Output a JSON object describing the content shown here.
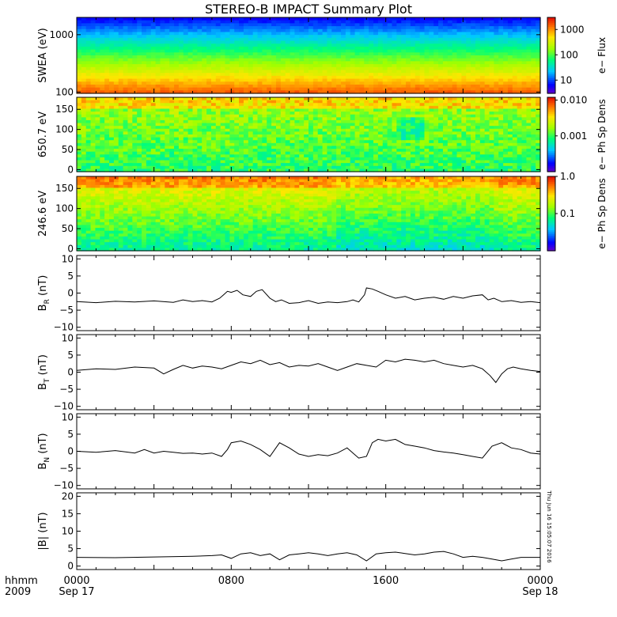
{
  "title": "STEREO-B IMPACT Summary Plot",
  "timestamp": "Thu Jun 16 15:05:07 2016",
  "time_axis": {
    "row_label_1": "hhmm",
    "row_label_2": "2009",
    "ticks": [
      {
        "hours": 0,
        "label": "0000",
        "sublabel": "Sep 17"
      },
      {
        "hours": 8,
        "label": "0800",
        "sublabel": ""
      },
      {
        "hours": 16,
        "label": "1600",
        "sublabel": ""
      },
      {
        "hours": 24,
        "label": "0000",
        "sublabel": "Sep 18"
      }
    ],
    "range_hours": [
      0,
      24
    ]
  },
  "chart_data": [
    {
      "type": "heatmap",
      "name": "swea",
      "ylabel": "SWEA (eV)",
      "yscale": "log",
      "ylim": [
        95,
        2000
      ],
      "yticks": [
        {
          "value": 100,
          "label": "100"
        },
        {
          "value": 1000,
          "label": "1000"
        }
      ],
      "colorbar": {
        "label": "e− Flux",
        "scale": "log",
        "range": [
          3,
          3000
        ],
        "ticks": [
          {
            "value": 10,
            "label": "10"
          },
          {
            "value": 100,
            "label": "100"
          },
          {
            "value": 1000,
            "label": "1000"
          }
        ]
      }
    },
    {
      "type": "heatmap",
      "name": "pad650",
      "ylabel": "650.7 eV",
      "yscale": "linear",
      "ylim": [
        -5,
        180
      ],
      "yticks": [
        {
          "value": 0,
          "label": "0"
        },
        {
          "value": 50,
          "label": "50"
        },
        {
          "value": 100,
          "label": "100"
        },
        {
          "value": 150,
          "label": "150"
        }
      ],
      "colorbar": {
        "label": "e− Ph Sp Dens",
        "scale": "log",
        "range": [
          0.0001,
          0.012
        ],
        "ticks": [
          {
            "value": 0.001,
            "label": "0.001"
          },
          {
            "value": 0.01,
            "label": "0.010"
          }
        ]
      }
    },
    {
      "type": "heatmap",
      "name": "pad246",
      "ylabel": "246.6 eV",
      "yscale": "linear",
      "ylim": [
        -5,
        180
      ],
      "yticks": [
        {
          "value": 0,
          "label": "0"
        },
        {
          "value": 50,
          "label": "50"
        },
        {
          "value": 100,
          "label": "100"
        },
        {
          "value": 150,
          "label": "150"
        }
      ],
      "colorbar": {
        "label": "e− Ph Sp Dens",
        "scale": "log",
        "range": [
          0.01,
          1.0
        ],
        "ticks": [
          {
            "value": 0.1,
            "label": "0.1"
          },
          {
            "value": 1.0,
            "label": "1.0"
          }
        ]
      }
    },
    {
      "type": "line",
      "name": "br",
      "ylabel": "B",
      "ylabel_sub": "R",
      "ylabel_unit": "(nT)",
      "ylim": [
        -11,
        11
      ],
      "yticks": [
        {
          "value": -10,
          "label": "−10"
        },
        {
          "value": -5,
          "label": "−5"
        },
        {
          "value": 0,
          "label": "0"
        },
        {
          "value": 5,
          "label": "5"
        },
        {
          "value": 10,
          "label": "10"
        }
      ],
      "x": [
        0,
        1,
        2,
        3,
        4,
        5,
        5.5,
        6,
        6.5,
        7,
        7.4,
        7.6,
        7.8,
        8,
        8.3,
        8.6,
        9,
        9.3,
        9.6,
        10,
        10.3,
        10.6,
        11,
        11.5,
        12,
        12.5,
        13,
        13.5,
        14,
        14.3,
        14.6,
        14.9,
        15,
        15.3,
        15.6,
        16,
        16.5,
        17,
        17.5,
        18,
        18.5,
        19,
        19.5,
        20,
        20.5,
        21,
        21.3,
        21.6,
        22,
        22.5,
        23,
        23.5,
        24
      ],
      "y": [
        -2.5,
        -2.8,
        -2.4,
        -2.6,
        -2.3,
        -2.7,
        -2.0,
        -2.5,
        -2.2,
        -2.6,
        -1.5,
        -0.5,
        0.5,
        0.2,
        0.8,
        -0.5,
        -1.0,
        0.5,
        1.0,
        -1.5,
        -2.5,
        -2.0,
        -3.0,
        -2.8,
        -2.2,
        -3.0,
        -2.6,
        -2.8,
        -2.5,
        -2.0,
        -2.6,
        -0.5,
        1.5,
        1.2,
        0.5,
        -0.5,
        -1.5,
        -1.0,
        -2.0,
        -1.5,
        -1.2,
        -1.8,
        -1.0,
        -1.5,
        -0.8,
        -0.5,
        -2.0,
        -1.5,
        -2.5,
        -2.2,
        -2.7,
        -2.5,
        -2.8
      ]
    },
    {
      "type": "line",
      "name": "bt",
      "ylabel": "B",
      "ylabel_sub": "T",
      "ylabel_unit": "(nT)",
      "ylim": [
        -11,
        11
      ],
      "yticks": [
        {
          "value": -10,
          "label": "−10"
        },
        {
          "value": -5,
          "label": "−5"
        },
        {
          "value": 0,
          "label": "0"
        },
        {
          "value": 5,
          "label": "5"
        },
        {
          "value": 10,
          "label": "10"
        }
      ],
      "x": [
        0,
        1,
        2,
        3,
        4,
        4.5,
        5,
        5.5,
        6,
        6.5,
        7,
        7.5,
        8,
        8.5,
        9,
        9.5,
        10,
        10.5,
        11,
        11.5,
        12,
        12.5,
        13,
        13.5,
        14,
        14.5,
        15,
        15.5,
        16,
        16.5,
        17,
        17.5,
        18,
        18.5,
        19,
        19.5,
        20,
        20.5,
        21,
        21.4,
        21.7,
        22,
        22.3,
        22.6,
        23,
        23.5,
        24
      ],
      "y": [
        0.5,
        1.0,
        0.8,
        1.5,
        1.2,
        -0.5,
        0.8,
        2.0,
        1.2,
        1.8,
        1.5,
        1.0,
        2.0,
        3.0,
        2.5,
        3.5,
        2.2,
        2.8,
        1.5,
        2.0,
        1.8,
        2.5,
        1.5,
        0.5,
        1.5,
        2.5,
        2.0,
        1.5,
        3.5,
        3.0,
        3.8,
        3.5,
        3.0,
        3.5,
        2.5,
        2.0,
        1.5,
        2.0,
        1.0,
        -1.0,
        -3.0,
        -0.5,
        1.0,
        1.5,
        1.0,
        0.5,
        0.2
      ]
    },
    {
      "type": "line",
      "name": "bn",
      "ylabel": "B",
      "ylabel_sub": "N",
      "ylabel_unit": "(nT)",
      "ylim": [
        -11,
        11
      ],
      "yticks": [
        {
          "value": -10,
          "label": "−10"
        },
        {
          "value": -5,
          "label": "−5"
        },
        {
          "value": 0,
          "label": "0"
        },
        {
          "value": 5,
          "label": "5"
        },
        {
          "value": 10,
          "label": "10"
        }
      ],
      "x": [
        0,
        1,
        2,
        3,
        3.5,
        4,
        4.5,
        5,
        5.5,
        6,
        6.5,
        7,
        7.5,
        7.8,
        8,
        8.5,
        9,
        9.5,
        10,
        10.5,
        11,
        11.5,
        12,
        12.5,
        13,
        13.5,
        14,
        14.3,
        14.6,
        15,
        15.3,
        15.6,
        16,
        16.5,
        17,
        17.5,
        18,
        18.5,
        19,
        19.5,
        20,
        20.5,
        21,
        21.5,
        22,
        22.5,
        23,
        23.5,
        24
      ],
      "y": [
        0,
        -0.3,
        0.2,
        -0.5,
        0.5,
        -0.5,
        0,
        -0.3,
        -0.6,
        -0.5,
        -0.8,
        -0.5,
        -1.5,
        0.5,
        2.5,
        3.0,
        2.0,
        0.5,
        -1.5,
        2.5,
        1.0,
        -0.8,
        -1.5,
        -1.0,
        -1.3,
        -0.5,
        1.0,
        -0.5,
        -2.0,
        -1.5,
        2.5,
        3.5,
        3.0,
        3.5,
        2.0,
        1.5,
        1.0,
        0.2,
        -0.2,
        -0.5,
        -1.0,
        -1.5,
        -2.0,
        1.5,
        2.5,
        1.0,
        0.5,
        -0.5,
        -0.8
      ]
    },
    {
      "type": "line",
      "name": "bmag",
      "ylabel": "|B|",
      "ylabel_sub": "",
      "ylabel_unit": "(nT)",
      "ylim": [
        -1,
        21
      ],
      "yticks": [
        {
          "value": 0,
          "label": "0"
        },
        {
          "value": 5,
          "label": "5"
        },
        {
          "value": 10,
          "label": "10"
        },
        {
          "value": 15,
          "label": "15"
        },
        {
          "value": 20,
          "label": "20"
        }
      ],
      "x": [
        0,
        2,
        4,
        6,
        7,
        7.5,
        8,
        8.5,
        9,
        9.5,
        10,
        10.5,
        11,
        11.5,
        12,
        12.5,
        13,
        13.5,
        14,
        14.5,
        15,
        15.5,
        16,
        16.5,
        17,
        17.5,
        18,
        18.5,
        19,
        19.5,
        20,
        20.5,
        21,
        21.5,
        22,
        22.5,
        23,
        24
      ],
      "y": [
        2.5,
        2.4,
        2.6,
        2.8,
        3.0,
        3.2,
        2.2,
        3.5,
        3.8,
        3.0,
        3.5,
        1.8,
        3.2,
        3.5,
        3.8,
        3.5,
        3.0,
        3.5,
        3.8,
        3.2,
        1.5,
        3.5,
        3.8,
        4.0,
        3.6,
        3.2,
        3.5,
        4.0,
        4.2,
        3.5,
        2.5,
        2.8,
        2.5,
        2.0,
        1.5,
        2.0,
        2.5,
        2.5
      ]
    }
  ]
}
